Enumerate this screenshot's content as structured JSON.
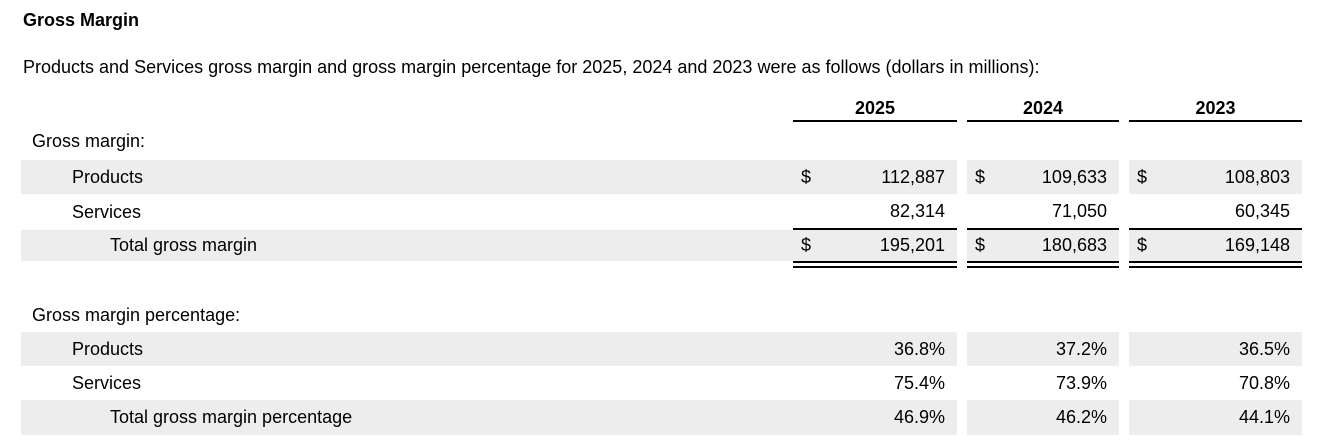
{
  "page": {
    "title": "Gross Margin",
    "intro": "Products and Services gross margin and gross margin percentage for 2025, 2024 and 2023 were as follows (dollars in millions):"
  },
  "table": {
    "years": [
      "2025",
      "2024",
      "2023"
    ],
    "currency_symbol": "$",
    "sections": [
      {
        "heading": "Gross margin:",
        "rows": [
          {
            "label": "Products",
            "values": [
              "112,887",
              "109,633",
              "108,803"
            ]
          },
          {
            "label": "Services",
            "values": [
              "82,314",
              "71,050",
              "60,345"
            ]
          },
          {
            "label": "Total gross margin",
            "values": [
              "195,201",
              "180,683",
              "169,148"
            ]
          }
        ]
      },
      {
        "heading": "Gross margin percentage:",
        "rows": [
          {
            "label": "Products",
            "values": [
              "36.8%",
              "37.2%",
              "36.5%"
            ]
          },
          {
            "label": "Services",
            "values": [
              "75.4%",
              "73.9%",
              "70.8%"
            ]
          },
          {
            "label": "Total gross margin percentage",
            "values": [
              "46.9%",
              "46.2%",
              "44.1%"
            ]
          }
        ]
      }
    ]
  },
  "colors": {
    "row_shade": "#ededed",
    "text": "#000000",
    "rule": "#000000",
    "background": "#ffffff"
  }
}
